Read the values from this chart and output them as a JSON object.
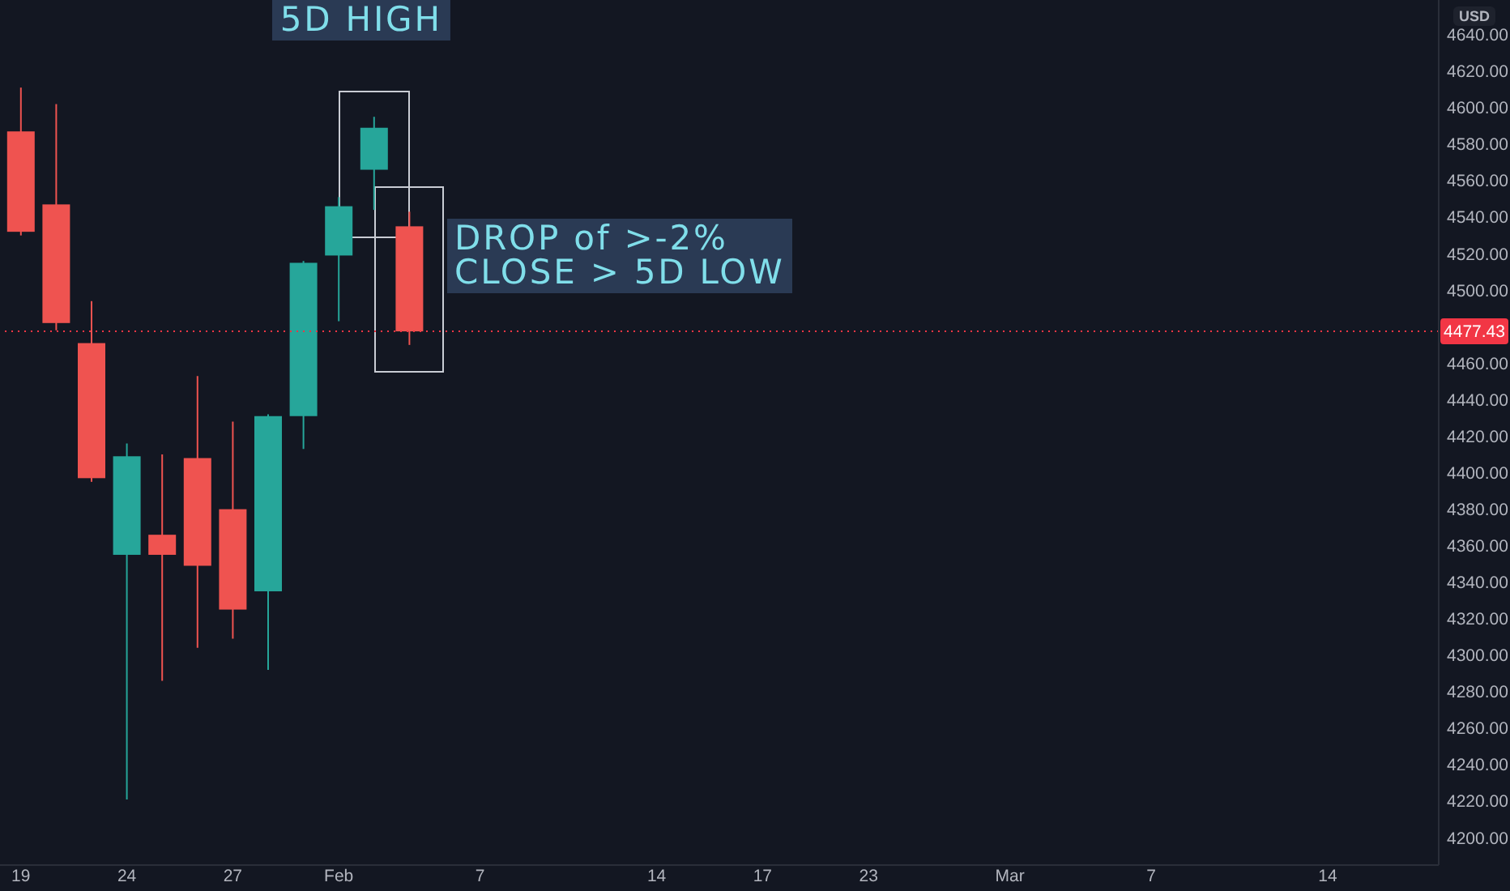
{
  "chart_data": {
    "type": "candlestick",
    "ylabel": "USD",
    "categories": [
      "19",
      null,
      null,
      "24",
      null,
      null,
      "27",
      null,
      null,
      "Feb",
      null,
      null,
      null,
      "7",
      null,
      null,
      null,
      null,
      "14",
      null,
      null,
      "17",
      null,
      null,
      "23",
      null,
      null,
      null,
      "Mar",
      null,
      null,
      null,
      "7",
      null,
      null,
      null,
      null,
      "14",
      null,
      null
    ],
    "ohlc": [
      [
        4587,
        4611,
        4530,
        4532
      ],
      [
        4547,
        4602,
        4478,
        4482
      ],
      [
        4471,
        4494,
        4395,
        4397
      ],
      [
        4355,
        4416,
        4221,
        4409
      ],
      [
        4366,
        4410,
        4286,
        4355
      ],
      [
        4408,
        4453,
        4304,
        4349
      ],
      [
        4380,
        4428,
        4309,
        4325
      ],
      [
        4335,
        4432,
        4292,
        4431
      ],
      [
        4431,
        4516,
        4413,
        4515
      ],
      [
        4519,
        4551,
        4483,
        4546
      ],
      [
        4566,
        4595,
        4544,
        4589
      ],
      [
        4535,
        4543,
        4470,
        4477.43
      ],
      null,
      null,
      null,
      null,
      null,
      null,
      null,
      null,
      null,
      null,
      null,
      null,
      null,
      null,
      null,
      null,
      null,
      null,
      null,
      null,
      null,
      null,
      null,
      null,
      null,
      null,
      null,
      null
    ],
    "colors": [
      "#ef5350",
      "#ef5350",
      "#ef5350",
      "#26a69a",
      "#ef5350",
      "#ef5350",
      "#ef5350",
      "#26a69a",
      "#26a69a",
      "#26a69a",
      "#26a69a",
      "#ef5350",
      null,
      null,
      null,
      null,
      null,
      null,
      null,
      null,
      null,
      null,
      null,
      null,
      null,
      null,
      null,
      null,
      null,
      null,
      null,
      null,
      null,
      null,
      null,
      null,
      null,
      null,
      null,
      null
    ],
    "ylim": [
      4185,
      4659
    ],
    "yticks": [
      {
        "value": 4200,
        "label": "4200.00"
      },
      {
        "value": 4220,
        "label": "4220.00"
      },
      {
        "value": 4240,
        "label": "4240.00"
      },
      {
        "value": 4260,
        "label": "4260.00"
      },
      {
        "value": 4280,
        "label": "4280.00"
      },
      {
        "value": 4300,
        "label": "4300.00"
      },
      {
        "value": 4320,
        "label": "4320.00"
      },
      {
        "value": 4340,
        "label": "4340.00"
      },
      {
        "value": 4360,
        "label": "4360.00"
      },
      {
        "value": 4380,
        "label": "4380.00"
      },
      {
        "value": 4400,
        "label": "4400.00"
      },
      {
        "value": 4420,
        "label": "4420.00"
      },
      {
        "value": 4440,
        "label": "4440.00"
      },
      {
        "value": 4460,
        "label": "4460.00"
      },
      {
        "value": 4500,
        "label": "4500.00"
      },
      {
        "value": 4520,
        "label": "4520.00"
      },
      {
        "value": 4540,
        "label": "4540.00"
      },
      {
        "value": 4560,
        "label": "4560.00"
      },
      {
        "value": 4580,
        "label": "4580.00"
      },
      {
        "value": 4600,
        "label": "4600.00"
      },
      {
        "value": 4620,
        "label": "4620.00"
      },
      {
        "value": 4640,
        "label": "4640.00"
      }
    ],
    "annotations": [
      "5D HIGH",
      "DROP of >-2%\nCLOSE > 5D LOW"
    ],
    "ref_lines": [
      {
        "axis": "y",
        "value": 4477.43,
        "label": "4477.43",
        "color": "#f23645",
        "line_style": "dotted"
      }
    ]
  }
}
